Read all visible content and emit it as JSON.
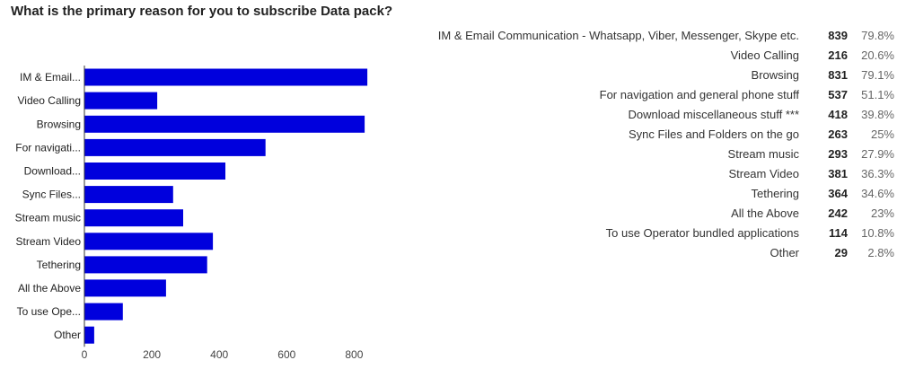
{
  "question": "What is the primary reason for you to subscribe Data pack?",
  "accent_color": "#0000dd",
  "chart_data": {
    "type": "bar",
    "orientation": "horizontal",
    "categories": [
      "IM & Email...",
      "Video Calling",
      "Browsing",
      "For navigati...",
      "Download...",
      "Sync Files...",
      "Stream music",
      "Stream Video",
      "Tethering",
      "All the Above",
      "To use Ope...",
      "Other"
    ],
    "values": [
      839,
      216,
      831,
      537,
      418,
      263,
      293,
      381,
      364,
      242,
      114,
      29
    ],
    "xlim": [
      0,
      900
    ],
    "xticks": [
      0,
      200,
      400,
      600,
      800
    ],
    "grid": false
  },
  "table": {
    "rows": [
      {
        "option": "IM & Email Communication - Whatsapp, Viber, Messenger, Skype etc.",
        "count": "839",
        "percent": "79.8%"
      },
      {
        "option": "Video Calling",
        "count": "216",
        "percent": "20.6%"
      },
      {
        "option": "Browsing",
        "count": "831",
        "percent": "79.1%"
      },
      {
        "option": "For navigation and general phone stuff",
        "count": "537",
        "percent": "51.1%"
      },
      {
        "option": "Download miscellaneous stuff ***",
        "count": "418",
        "percent": "39.8%"
      },
      {
        "option": "Sync Files and Folders on the go",
        "count": "263",
        "percent": "25%"
      },
      {
        "option": "Stream music",
        "count": "293",
        "percent": "27.9%"
      },
      {
        "option": "Stream Video",
        "count": "381",
        "percent": "36.3%"
      },
      {
        "option": "Tethering",
        "count": "364",
        "percent": "34.6%"
      },
      {
        "option": "All the Above",
        "count": "242",
        "percent": "23%"
      },
      {
        "option": "To use Operator bundled applications",
        "count": "114",
        "percent": "10.8%"
      },
      {
        "option": "Other",
        "count": "29",
        "percent": "2.8%"
      }
    ]
  }
}
